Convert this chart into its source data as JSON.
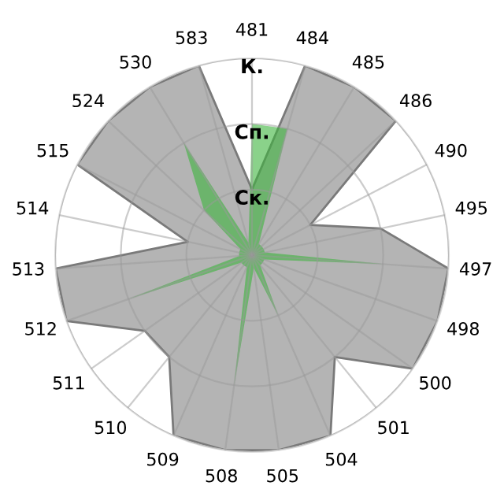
{
  "chart_data": {
    "type": "radar",
    "categories": [
      "481",
      "484",
      "485",
      "486",
      "490",
      "495",
      "497",
      "498",
      "500",
      "501",
      "504",
      "505",
      "508",
      "509",
      "510",
      "511",
      "512",
      "513",
      "514",
      "515",
      "524",
      "530",
      "583"
    ],
    "series": [
      {
        "color": "#b4b4b4",
        "values": [
          1,
          3,
          3,
          3,
          1,
          2,
          3,
          3,
          3,
          2,
          3,
          3,
          3,
          3,
          2,
          2,
          3,
          3,
          1,
          3,
          3,
          3,
          3
        ]
      },
      {
        "color": "#3cb43c",
        "values": [
          2,
          2,
          0.2,
          0.2,
          0.2,
          0.2,
          2,
          0.2,
          0.2,
          0.2,
          1,
          0.2,
          2,
          0.2,
          0.2,
          0.2,
          2,
          0.2,
          0.2,
          0.2,
          1,
          2,
          0.2
        ]
      }
    ],
    "ylim": [
      0,
      3
    ],
    "yticks": [
      {
        "value": 1,
        "label": "Ск."
      },
      {
        "value": 2,
        "label": "Сп."
      },
      {
        "value": 3,
        "label": "К."
      }
    ],
    "grid": true,
    "legend": false
  }
}
